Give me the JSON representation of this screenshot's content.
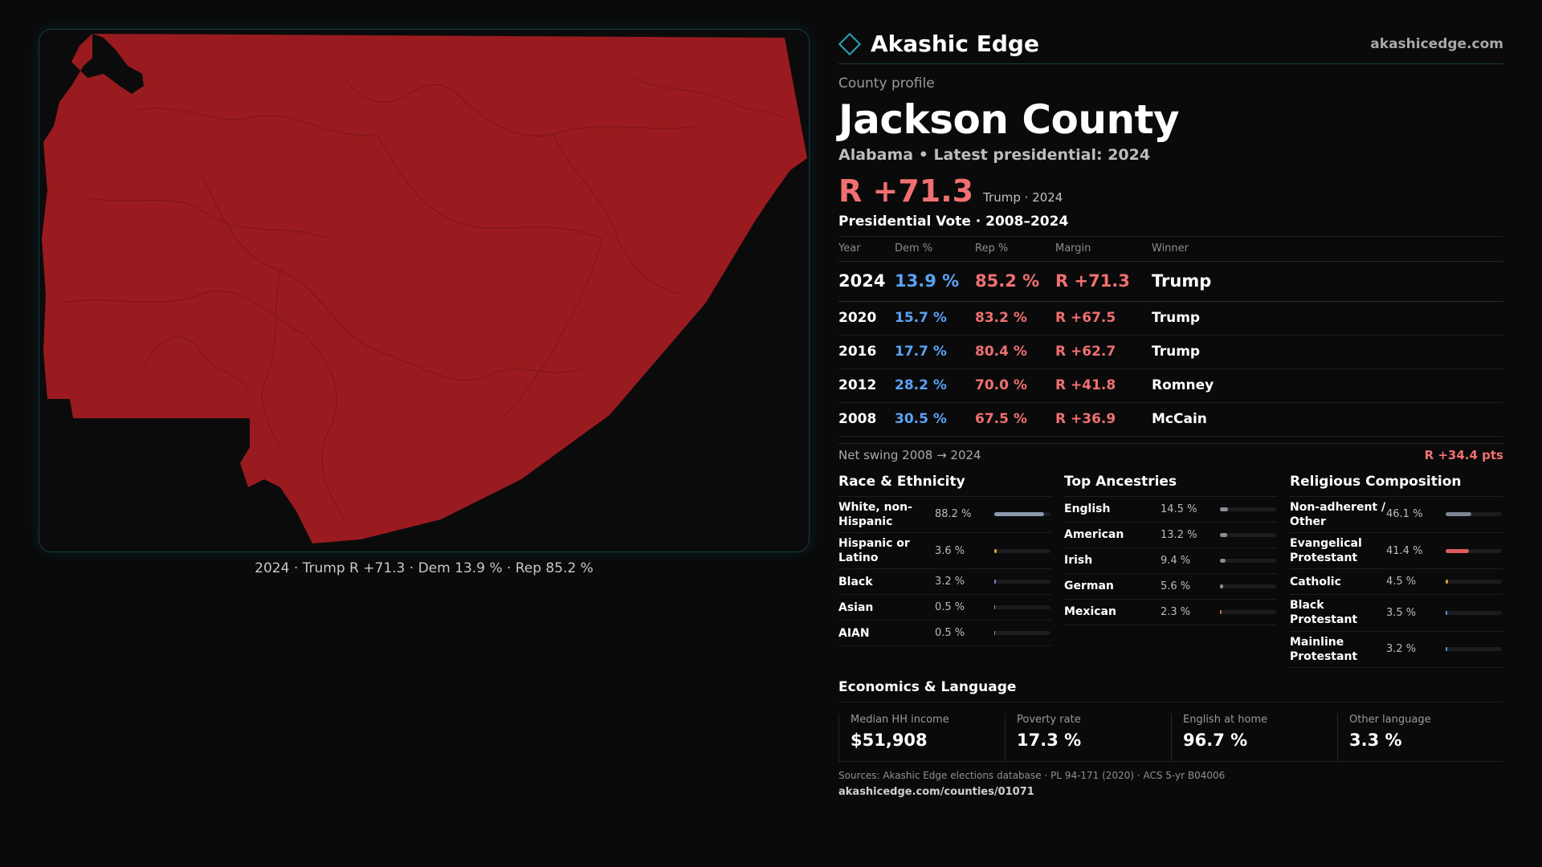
{
  "brand": {
    "name": "Akashic Edge",
    "url": "akashicedge.com",
    "accent": "#2aa6b6"
  },
  "profile": {
    "label": "County profile",
    "county": "Jackson County",
    "subtitle": "Alabama • Latest presidential: 2024",
    "headline_margin": "R +71.3",
    "headline_note": "Trump · 2024"
  },
  "map": {
    "caption": "2024 · Trump R +71.3 · Dem 13.9 % · Rep 85.2 %",
    "fill_color": "#9a1b1f",
    "border_color": "#7a1418"
  },
  "presidential": {
    "title": "Presidential Vote · 2008–2024",
    "headers": {
      "year": "Year",
      "dem": "Dem %",
      "rep": "Rep %",
      "margin": "Margin",
      "winner": "Winner"
    },
    "rows": [
      {
        "year": "2024",
        "dem": "13.9 %",
        "rep": "85.2 %",
        "margin": "R +71.3",
        "winner": "Trump"
      },
      {
        "year": "2020",
        "dem": "15.7 %",
        "rep": "83.2 %",
        "margin": "R +67.5",
        "winner": "Trump"
      },
      {
        "year": "2016",
        "dem": "17.7 %",
        "rep": "80.4 %",
        "margin": "R +62.7",
        "winner": "Trump"
      },
      {
        "year": "2012",
        "dem": "28.2 %",
        "rep": "70.0 %",
        "margin": "R +41.8",
        "winner": "Romney"
      },
      {
        "year": "2008",
        "dem": "30.5 %",
        "rep": "67.5 %",
        "margin": "R +36.9",
        "winner": "McCain"
      }
    ],
    "swing_label": "Net swing 2008 → 2024",
    "swing_value": "R +34.4 pts"
  },
  "race": {
    "title": "Race & Ethnicity",
    "items": [
      {
        "label": "White, non-Hispanic",
        "pct": "88.2 %",
        "value": 88.2,
        "color": "#8a9bb0"
      },
      {
        "label": "Hispanic or Latino",
        "pct": "3.6 %",
        "value": 3.6,
        "color": "#e0a030"
      },
      {
        "label": "Black",
        "pct": "3.2 %",
        "value": 3.2,
        "color": "#8a7fe0"
      },
      {
        "label": "Asian",
        "pct": "0.5 %",
        "value": 0.5,
        "color": "#4fc0b0"
      },
      {
        "label": "AIAN",
        "pct": "0.5 %",
        "value": 0.5,
        "color": "#d08050"
      }
    ]
  },
  "ancestries": {
    "title": "Top Ancestries",
    "items": [
      {
        "label": "English",
        "pct": "14.5 %",
        "value": 14.5,
        "color": "#8a8f98"
      },
      {
        "label": "American",
        "pct": "13.2 %",
        "value": 13.2,
        "color": "#8a8f98"
      },
      {
        "label": "Irish",
        "pct": "9.4 %",
        "value": 9.4,
        "color": "#8a8f98"
      },
      {
        "label": "German",
        "pct": "5.6 %",
        "value": 5.6,
        "color": "#8a8f98"
      },
      {
        "label": "Mexican",
        "pct": "2.3 %",
        "value": 2.3,
        "color": "#c07840"
      }
    ]
  },
  "religion": {
    "title": "Religious Composition",
    "items": [
      {
        "label": "Non-adherent / Other",
        "pct": "46.1 %",
        "value": 46.1,
        "color": "#7d8594"
      },
      {
        "label": "Evangelical Protestant",
        "pct": "41.4 %",
        "value": 41.4,
        "color": "#e05a5a"
      },
      {
        "label": "Catholic",
        "pct": "4.5 %",
        "value": 4.5,
        "color": "#e0a030"
      },
      {
        "label": "Black Protestant",
        "pct": "3.5 %",
        "value": 3.5,
        "color": "#5a8ae0"
      },
      {
        "label": "Mainline Protestant",
        "pct": "3.2 %",
        "value": 3.2,
        "color": "#5a9ae0"
      }
    ]
  },
  "economics": {
    "title": "Economics & Language",
    "items": [
      {
        "label": "Median HH income",
        "value": "$51,908"
      },
      {
        "label": "Poverty rate",
        "value": "17.3 %"
      },
      {
        "label": "English at home",
        "value": "96.7 %"
      },
      {
        "label": "Other language",
        "value": "3.3 %"
      }
    ]
  },
  "sources": {
    "text": "Sources: Akashic Edge elections database · PL 94-171 (2020) · ACS 5-yr B04006",
    "url": "akashicedge.com/counties/01071"
  }
}
